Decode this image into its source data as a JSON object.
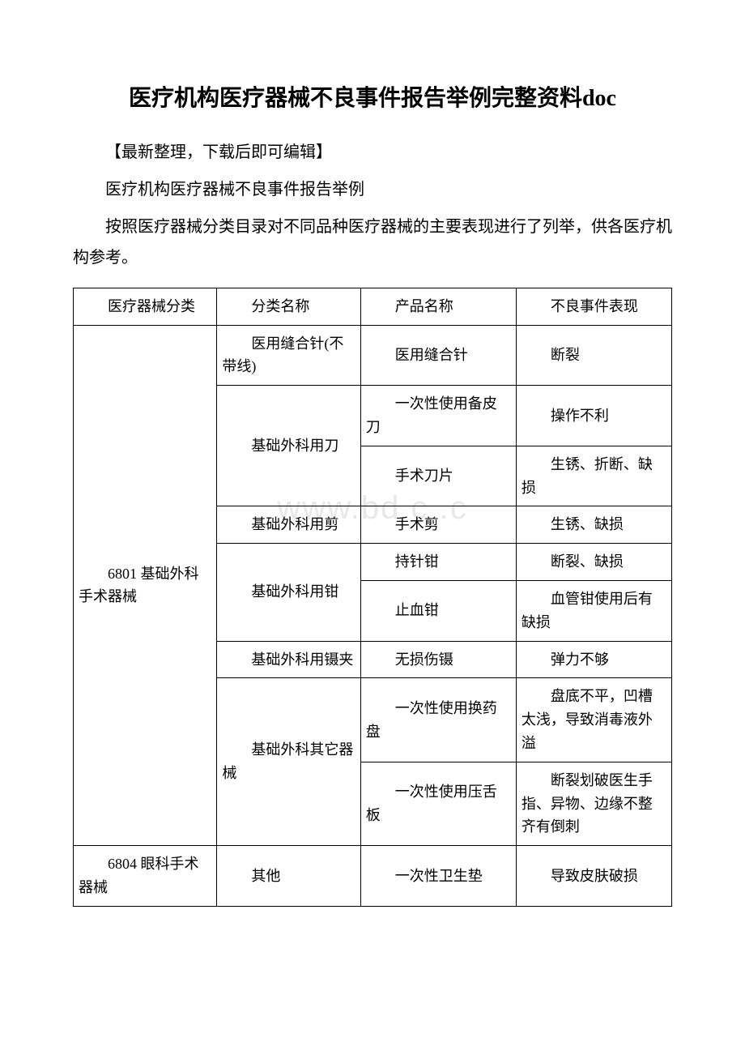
{
  "title": "医疗机构医疗器械不良事件报告举例完整资料doc",
  "paragraphs": {
    "p1": "【最新整理，下载后即可编辑】",
    "p2": "医疗机构医疗器械不良事件报告举例",
    "p3": "按照医疗器械分类目录对不同品种医疗器械的主要表现进行了列举，供各医疗机构参考。"
  },
  "watermark": "www.bd   c .c   ",
  "table": {
    "header": {
      "c1": "医疗器械分类",
      "c2": "分类名称",
      "c3": "产品名称",
      "c4": "不良事件表现"
    },
    "rows": [
      {
        "category": "6801 基础外科手术器械",
        "subcat": "医用缝合针(不带线)",
        "product": "医用缝合针",
        "event": "断裂"
      },
      {
        "subcat": "基础外科用刀",
        "product": "一次性使用备皮刀",
        "event": "操作不利"
      },
      {
        "product": "手术刀片",
        "event": "生锈、折断、缺损"
      },
      {
        "subcat": "基础外科用剪",
        "product": "手术剪",
        "event": "生锈、缺损"
      },
      {
        "subcat": "基础外科用钳",
        "product": "持针钳",
        "event": "断裂、缺损"
      },
      {
        "product": "止血钳",
        "event": "血管钳使用后有缺损"
      },
      {
        "subcat": "基础外科用镊夹",
        "product": "无损伤镊",
        "event": "弹力不够"
      },
      {
        "subcat": "基础外科其它器械",
        "product": "一次性使用换药盘",
        "event": "盘底不平，凹槽太浅，导致消毒液外溢"
      },
      {
        "product": "一次性使用压舌板",
        "event": "断裂划破医生手指、异物、边缘不整齐有倒刺"
      },
      {
        "category": "6804 眼科手术器械",
        "subcat": "其他",
        "product": "一次性卫生垫",
        "event": "导致皮肤破损"
      }
    ]
  }
}
